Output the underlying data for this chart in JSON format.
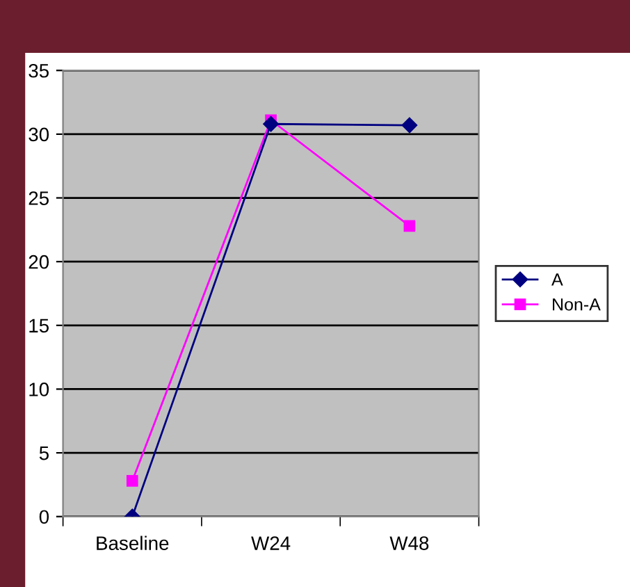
{
  "chart_data": {
    "type": "line",
    "categories": [
      "Baseline",
      "W24",
      "W48"
    ],
    "series": [
      {
        "name": "A",
        "color": "#000080",
        "values": [
          0,
          30.8,
          30.7
        ],
        "marker": "diamond"
      },
      {
        "name": "Non-A",
        "color": "#ff00ff",
        "values": [
          2.8,
          31.1,
          22.8
        ],
        "marker": "square"
      }
    ],
    "ylim": [
      0,
      35
    ],
    "yticks": [
      0,
      5,
      10,
      15,
      20,
      25,
      30,
      35
    ],
    "grid": "y",
    "legend": "right"
  }
}
